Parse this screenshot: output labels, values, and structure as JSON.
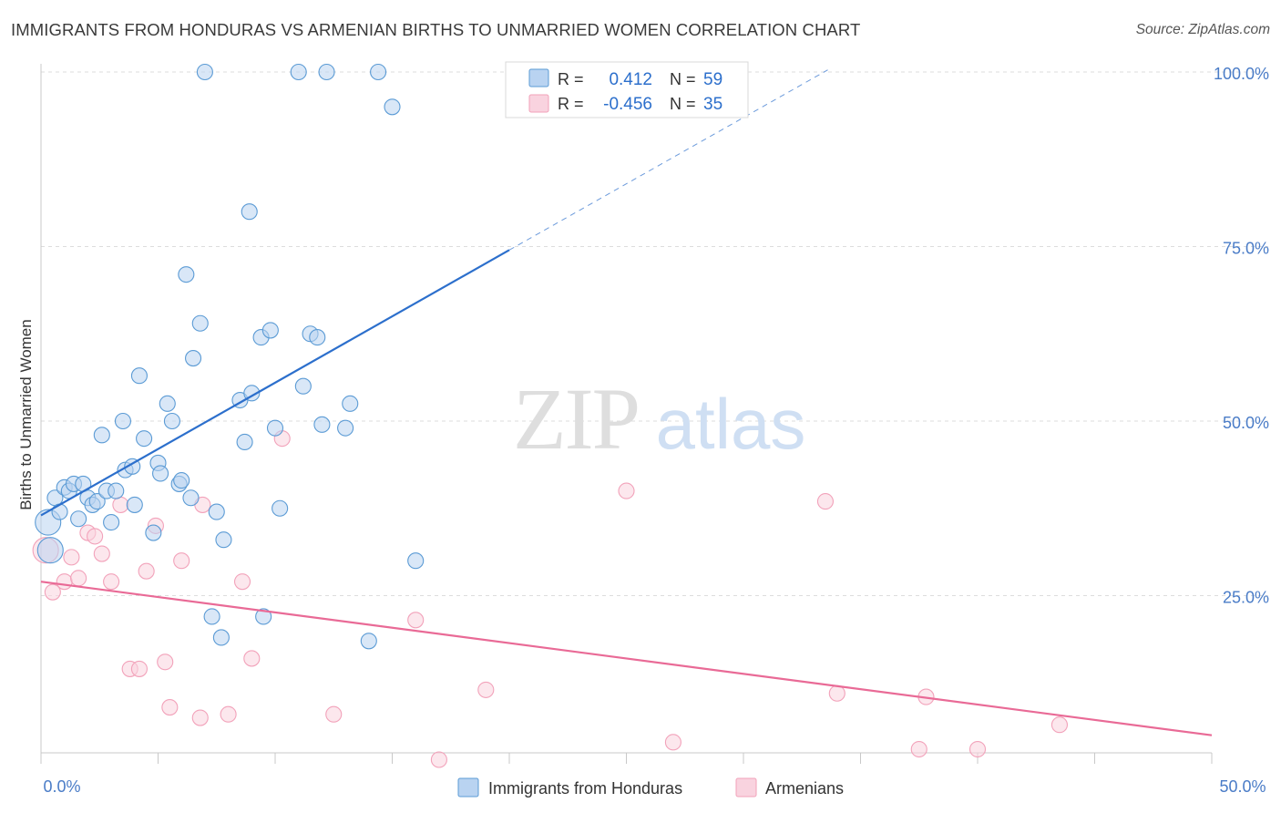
{
  "title": "IMMIGRANTS FROM HONDURAS VS ARMENIAN BIRTHS TO UNMARRIED WOMEN CORRELATION CHART",
  "source": "Source: ZipAtlas.com",
  "watermark": {
    "zip": "ZIP",
    "atlas": "atlas"
  },
  "colors": {
    "blue": "#5b9bd5",
    "blue_line": "#2c6fcc",
    "blue_fill": "#b9d3f1",
    "pink": "#f2a2ba",
    "pink_line": "#e96a96",
    "pink_fill": "#f9d3df",
    "axis_text": "#4a7cc7",
    "grid": "#dddddd"
  },
  "legend_top": {
    "rows": [
      {
        "r_label": "R =",
        "r_value": "0.412",
        "n_label": "N =",
        "n_value": "59"
      },
      {
        "r_label": "R =",
        "r_value": "-0.456",
        "n_label": "N =",
        "n_value": "35"
      }
    ]
  },
  "legend_bottom": [
    "Immigrants from Honduras",
    "Armenians"
  ],
  "chart_data": {
    "type": "scatter",
    "ylabel": "Births to Unmarried Women",
    "xlabel": "",
    "xlim": [
      0,
      50
    ],
    "ylim": [
      0,
      102
    ],
    "x_tick_labels": [
      "0.0%",
      "50.0%"
    ],
    "y_ticks": [
      25,
      50,
      75,
      100
    ],
    "y_tick_labels": [
      "25.0%",
      "50.0%",
      "75.0%",
      "100.0%"
    ],
    "grid": true,
    "series": [
      {
        "name": "Immigrants from Honduras",
        "r": 0.412,
        "n": 59,
        "trend": {
          "x0": 0,
          "y0": 36.5,
          "x1": 20,
          "y1": 74.5,
          "dash_to_x": 33.6,
          "dash_to_y": 100.3
        },
        "points": [
          [
            0.4,
            31.5
          ],
          [
            0.3,
            35.5
          ],
          [
            0.6,
            39.0
          ],
          [
            0.8,
            37.0
          ],
          [
            1.0,
            40.5
          ],
          [
            1.2,
            40.0
          ],
          [
            1.4,
            41.0
          ],
          [
            1.6,
            36.0
          ],
          [
            1.8,
            41.0
          ],
          [
            2.0,
            39.0
          ],
          [
            2.2,
            38.0
          ],
          [
            2.4,
            38.5
          ],
          [
            2.6,
            48.0
          ],
          [
            2.8,
            40.0
          ],
          [
            3.0,
            35.5
          ],
          [
            3.2,
            40.0
          ],
          [
            3.5,
            50.0
          ],
          [
            3.6,
            43.0
          ],
          [
            3.9,
            43.5
          ],
          [
            4.0,
            38.0
          ],
          [
            4.2,
            56.5
          ],
          [
            4.4,
            47.5
          ],
          [
            4.8,
            34.0
          ],
          [
            5.0,
            44.0
          ],
          [
            5.1,
            42.5
          ],
          [
            5.4,
            52.5
          ],
          [
            5.6,
            50.0
          ],
          [
            5.9,
            41.0
          ],
          [
            6.0,
            41.5
          ],
          [
            6.2,
            71.0
          ],
          [
            6.4,
            39.0
          ],
          [
            6.5,
            59.0
          ],
          [
            6.8,
            64.0
          ],
          [
            7.0,
            100.0
          ],
          [
            7.3,
            22.0
          ],
          [
            7.5,
            37.0
          ],
          [
            7.7,
            19.0
          ],
          [
            7.8,
            33.0
          ],
          [
            8.5,
            53.0
          ],
          [
            8.7,
            47.0
          ],
          [
            8.9,
            80.0
          ],
          [
            9.0,
            54.0
          ],
          [
            9.4,
            62.0
          ],
          [
            9.5,
            22.0
          ],
          [
            9.8,
            63.0
          ],
          [
            10.0,
            49.0
          ],
          [
            10.2,
            37.5
          ],
          [
            11.0,
            100.0
          ],
          [
            11.2,
            55.0
          ],
          [
            11.5,
            62.5
          ],
          [
            11.8,
            62.0
          ],
          [
            12.0,
            49.5
          ],
          [
            12.2,
            100.0
          ],
          [
            13.0,
            49.0
          ],
          [
            13.2,
            52.5
          ],
          [
            14.0,
            18.5
          ],
          [
            14.4,
            100.0
          ],
          [
            15.0,
            95.0
          ],
          [
            16.0,
            30.0
          ]
        ]
      },
      {
        "name": "Armenians",
        "r": -0.456,
        "n": 35,
        "trend": {
          "x0": 0,
          "y0": 27.0,
          "x1": 50,
          "y1": 5.0
        },
        "points": [
          [
            0.2,
            31.5
          ],
          [
            0.5,
            25.5
          ],
          [
            1.0,
            27.0
          ],
          [
            1.3,
            30.5
          ],
          [
            1.6,
            27.5
          ],
          [
            2.0,
            34.0
          ],
          [
            2.3,
            33.5
          ],
          [
            2.6,
            31.0
          ],
          [
            3.0,
            27.0
          ],
          [
            3.4,
            38.0
          ],
          [
            3.8,
            14.5
          ],
          [
            4.2,
            14.5
          ],
          [
            4.5,
            28.5
          ],
          [
            4.9,
            35.0
          ],
          [
            5.3,
            15.5
          ],
          [
            5.5,
            9.0
          ],
          [
            6.0,
            30.0
          ],
          [
            6.8,
            7.5
          ],
          [
            6.9,
            38.0
          ],
          [
            8.0,
            8.0
          ],
          [
            8.6,
            27.0
          ],
          [
            9.0,
            16.0
          ],
          [
            10.3,
            47.5
          ],
          [
            12.5,
            8.0
          ],
          [
            16.0,
            21.5
          ],
          [
            17.0,
            1.5
          ],
          [
            19.0,
            11.5
          ],
          [
            25.0,
            40.0
          ],
          [
            27.0,
            4.0
          ],
          [
            33.5,
            38.5
          ],
          [
            34.0,
            11.0
          ],
          [
            37.5,
            3.0
          ],
          [
            37.8,
            10.5
          ],
          [
            40.0,
            3.0
          ],
          [
            43.5,
            6.5
          ]
        ]
      }
    ]
  }
}
